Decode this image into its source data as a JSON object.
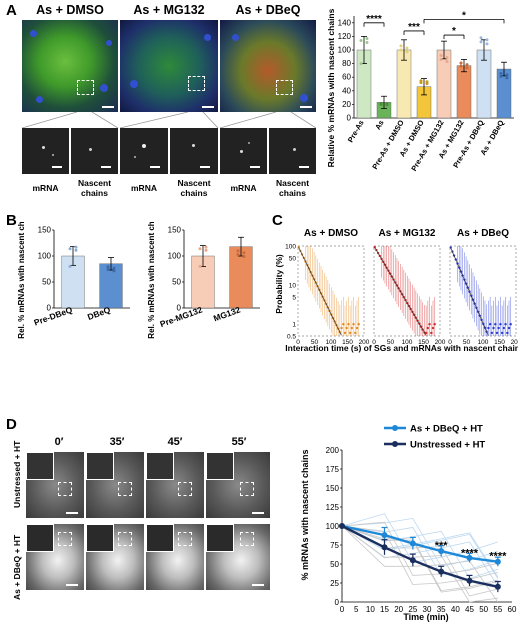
{
  "panels": {
    "A": "A",
    "B": "B",
    "C": "C",
    "D": "D"
  },
  "panelA": {
    "conditions": [
      "As + DMSO",
      "As + MG132",
      "As + DBeQ"
    ],
    "sublabels": {
      "mrna": "mRNA",
      "nascent": "Nascent chains"
    }
  },
  "panelC": {
    "conditions": [
      "As + DMSO",
      "As + MG132",
      "As + DBeQ"
    ]
  },
  "panelD": {
    "times": [
      "0′",
      "35′",
      "45′",
      "55′"
    ],
    "rows": [
      "Unstressed + HT",
      "As + DBeQ + HT"
    ]
  },
  "chart_data": [
    {
      "id": "A-bar",
      "type": "bar",
      "categories": [
        "Pre-As",
        "As",
        "Pre-As + DMSO",
        "As + DMSO",
        "Pre-As + MG132",
        "As + MG132",
        "Pre-As + DBeQ",
        "As + DBeQ"
      ],
      "values": [
        100,
        23,
        100,
        46,
        100,
        77,
        100,
        72
      ],
      "errors": [
        20,
        9,
        15,
        12,
        13,
        9,
        15,
        10
      ],
      "colors": [
        "#cfe8c4",
        "#6bb35a",
        "#f8e9b3",
        "#f2c53a",
        "#f7cdb8",
        "#e98b5a",
        "#cfe0f2",
        "#5b8fd0"
      ],
      "ylabel": "Relative % mRNAs with nascent chains",
      "ylim": [
        0,
        150
      ],
      "yticks": [
        "0",
        "20",
        "40",
        "60",
        "80",
        "100",
        "120",
        "140"
      ],
      "significance": [
        {
          "from": 0,
          "to": 1,
          "label": "****"
        },
        {
          "from": 2,
          "to": 3,
          "label": "***"
        },
        {
          "from": 4,
          "to": 5,
          "label": "*"
        },
        {
          "from": 3,
          "to": 7,
          "label": "*"
        }
      ]
    },
    {
      "id": "B-left",
      "type": "bar",
      "categories": [
        "Pre-DBeQ",
        "DBeQ"
      ],
      "values": [
        100,
        85
      ],
      "errors": [
        18,
        12
      ],
      "colors": [
        "#cfe0f2",
        "#5b8fd0"
      ],
      "ylabel": "Rel. % mRNAs with nascent chains",
      "ylim": [
        0,
        150
      ],
      "yticks": [
        "0",
        "50",
        "100",
        "150"
      ]
    },
    {
      "id": "B-right",
      "type": "bar",
      "categories": [
        "Pre-MG132",
        "MG132"
      ],
      "values": [
        100,
        118
      ],
      "errors": [
        20,
        18
      ],
      "colors": [
        "#f7cdb8",
        "#e98b5a"
      ],
      "ylabel": "Rel. % mRNAs with nascent chains",
      "ylim": [
        0,
        150
      ],
      "yticks": [
        "0",
        "50",
        "100",
        "150"
      ]
    },
    {
      "id": "C",
      "type": "scatter",
      "ylabel": "Probability (%)",
      "xlabel": "Interaction time (s) of SGs and mRNAs with nascent chains",
      "yscale": "log",
      "xlim": [
        0,
        200
      ],
      "ylim": [
        0.5,
        100
      ],
      "yticks": [
        "0.5",
        "1",
        "5",
        "10",
        "50",
        "100"
      ],
      "xticks": [
        "0",
        "50",
        "100",
        "150",
        "200"
      ],
      "colors": [
        "#e58a1f",
        "#d42a2a",
        "#2a3ad4"
      ]
    },
    {
      "id": "D-line",
      "type": "line",
      "x": [
        0,
        15,
        25,
        35,
        45,
        55
      ],
      "series": [
        {
          "name": "As + DBeQ + HT",
          "color": "#1e88d8",
          "values": [
            100,
            88,
            77,
            67,
            58,
            53
          ],
          "errors": [
            0,
            10,
            8,
            7,
            6,
            6
          ]
        },
        {
          "name": "Unstressed + HT",
          "color": "#1a2f5e",
          "values": [
            100,
            72,
            55,
            40,
            28,
            20
          ],
          "errors": [
            0,
            10,
            8,
            7,
            7,
            7
          ]
        }
      ],
      "significance": [
        {
          "x": 35,
          "label": "***"
        },
        {
          "x": 45,
          "label": "****"
        },
        {
          "x": 55,
          "label": "****"
        }
      ],
      "xlabel": "Time (min)",
      "ylabel": "% mRNAs with nascent chains",
      "xlim": [
        0,
        60
      ],
      "ylim": [
        0,
        200
      ],
      "xticks": [
        "0",
        "5",
        "10",
        "15",
        "20",
        "25",
        "30",
        "35",
        "40",
        "45",
        "50",
        "55",
        "60"
      ],
      "yticks": [
        "0",
        "25",
        "50",
        "75",
        "100",
        "125",
        "150",
        "175",
        "200"
      ]
    }
  ]
}
